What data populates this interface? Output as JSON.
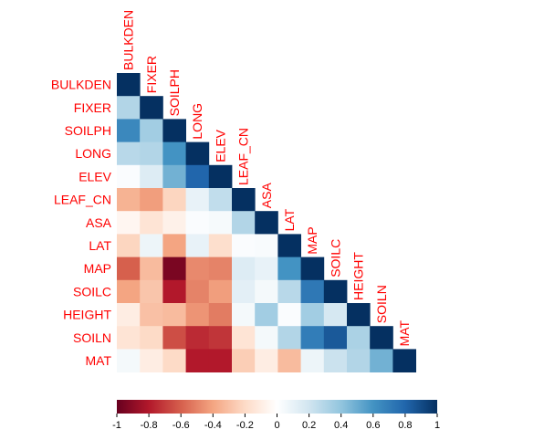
{
  "chart_data": {
    "type": "heatmap",
    "subtype": "lower-triangular correlation matrix",
    "variables": [
      "BULKDEN",
      "FIXER",
      "SOILPH",
      "LONG",
      "ELEV",
      "LEAF_CN",
      "ASA",
      "LAT",
      "MAP",
      "SOILC",
      "HEIGHT",
      "SOILN",
      "MAT"
    ],
    "matrix": [
      [
        1.0
      ],
      [
        0.3,
        1.0
      ],
      [
        0.65,
        0.35,
        1.0
      ],
      [
        0.28,
        0.3,
        0.6,
        1.0
      ],
      [
        0.02,
        0.15,
        0.48,
        0.8,
        1.0
      ],
      [
        -0.35,
        -0.42,
        -0.22,
        0.1,
        0.25,
        1.0
      ],
      [
        -0.05,
        -0.15,
        -0.08,
        0.02,
        0.04,
        0.3,
        1.0
      ],
      [
        -0.22,
        0.08,
        -0.4,
        0.1,
        -0.18,
        0.02,
        0.03,
        1.0
      ],
      [
        -0.6,
        -0.32,
        -0.95,
        -0.48,
        -0.5,
        0.15,
        0.1,
        0.6,
        1.0
      ],
      [
        -0.4,
        -0.28,
        -0.8,
        -0.5,
        -0.42,
        0.12,
        0.05,
        0.28,
        0.72,
        1.0
      ],
      [
        -0.1,
        -0.3,
        -0.32,
        -0.45,
        -0.52,
        0.05,
        0.35,
        0.02,
        0.35,
        0.18,
        1.0
      ],
      [
        -0.15,
        -0.2,
        -0.65,
        -0.75,
        -0.72,
        -0.15,
        0.05,
        0.3,
        0.7,
        0.85,
        0.32,
        1.0
      ],
      [
        0.05,
        -0.1,
        -0.2,
        -0.8,
        -0.8,
        -0.25,
        -0.1,
        -0.32,
        0.08,
        0.22,
        0.3,
        0.48,
        1.0
      ]
    ],
    "colorbar": {
      "range": [
        -1,
        1
      ],
      "tick_labels": [
        "-1",
        "-0.8",
        "-0.6",
        "-0.4",
        "-0.2",
        "0",
        "0.2",
        "0.4",
        "0.6",
        "0.8",
        "1"
      ],
      "tick_values": [
        -1,
        -0.8,
        -0.6,
        -0.4,
        -0.2,
        0,
        0.2,
        0.4,
        0.6,
        0.8,
        1
      ],
      "stops": [
        {
          "v": -1.0,
          "color": "#67001f"
        },
        {
          "v": -0.8,
          "color": "#b2182b"
        },
        {
          "v": -0.6,
          "color": "#d6604d"
        },
        {
          "v": -0.4,
          "color": "#f4a582"
        },
        {
          "v": -0.2,
          "color": "#fddbc7"
        },
        {
          "v": 0.0,
          "color": "#ffffff"
        },
        {
          "v": 0.2,
          "color": "#d1e5f0"
        },
        {
          "v": 0.4,
          "color": "#92c5de"
        },
        {
          "v": 0.6,
          "color": "#4393c3"
        },
        {
          "v": 0.8,
          "color": "#2166ac"
        },
        {
          "v": 1.0,
          "color": "#053061"
        }
      ],
      "placement": "bottom"
    },
    "label_color": "#ff0000",
    "title": "",
    "xlabel": "",
    "ylabel": ""
  }
}
